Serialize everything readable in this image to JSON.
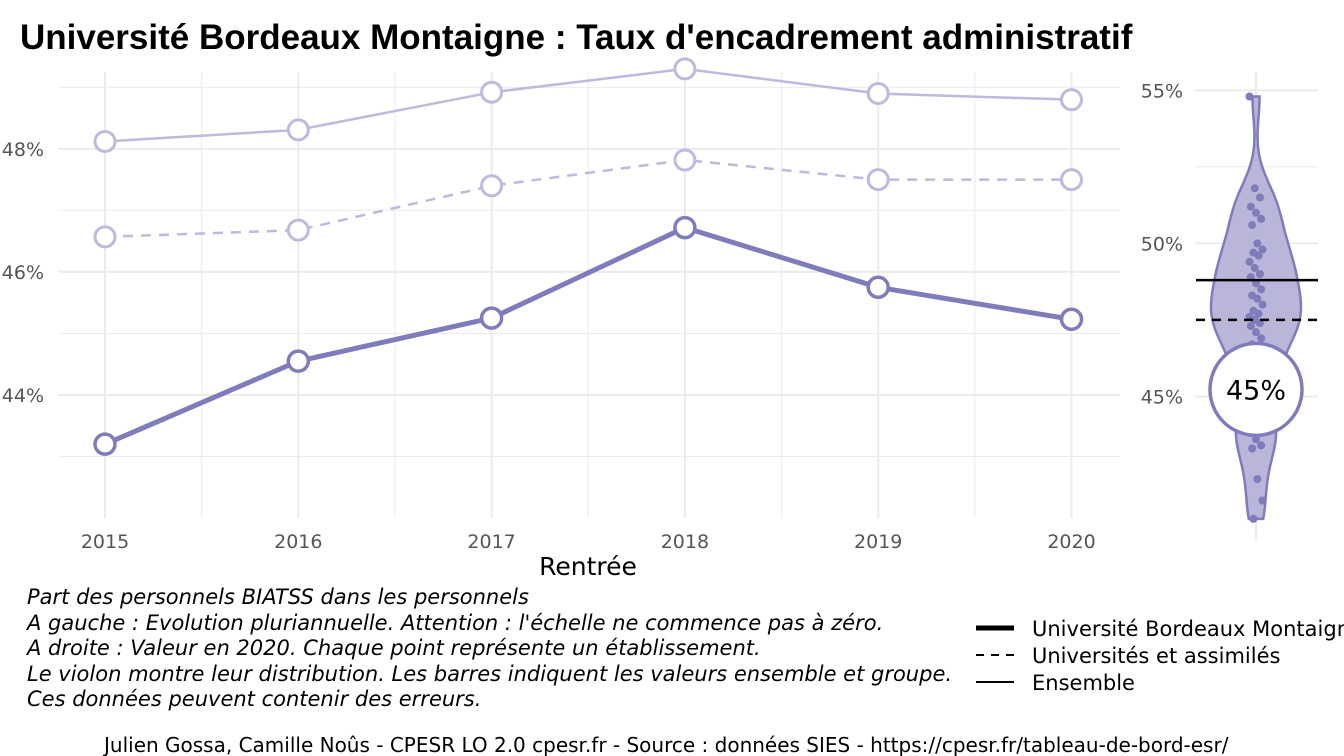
{
  "title": "Université Bordeaux Montaigne  :  Taux d'encadrement administratif",
  "colors": {
    "main": "#7E7CBB",
    "light": "#BDBADD",
    "violin_fill": "#B9B6DA",
    "grid": "#EBEBEB",
    "tick_text": "#555555"
  },
  "caption_lines": [
    "Part des personnels BIATSS dans les personnels",
    "A gauche : Evolution pluriannuelle. Attention : l'échelle ne commence pas à zéro.",
    "A droite : Valeur en 2020. Chaque point représente un établissement.",
    "Le violon montre leur distribution. Les barres indiquent les valeurs ensemble et groupe.",
    "Ces données peuvent contenir des erreurs."
  ],
  "legend": [
    {
      "label": "Université Bordeaux Montaigne",
      "style": "thick"
    },
    {
      "label": "Universités et assimilés",
      "style": "dashed"
    },
    {
      "label": "Ensemble",
      "style": "thin"
    }
  ],
  "credit": "Julien Gossa, Camille Noûs - CPESR LO 2.0 cpesr.fr - Source : données SIES - https://cpesr.fr/tableau-de-bord-esr/",
  "chart_data": [
    {
      "type": "line",
      "xlabel": "Rentrée",
      "ylabel": "",
      "x": [
        2015,
        2016,
        2017,
        2018,
        2019,
        2020
      ],
      "x_tick_labels": [
        "2015",
        "2016",
        "2017",
        "2018",
        "2019",
        "2020"
      ],
      "y_ticks": [
        44,
        46,
        48
      ],
      "y_tick_labels": [
        "44%",
        "46%",
        "48%"
      ],
      "ylim": [
        42.0,
        49.25
      ],
      "grid": true,
      "series": [
        {
          "name": "Université Bordeaux Montaigne",
          "style": "thick",
          "values": [
            43.2,
            44.55,
            45.25,
            46.72,
            45.75,
            45.23
          ]
        },
        {
          "name": "Universités et assimilés",
          "style": "dashed",
          "values": [
            46.57,
            46.68,
            47.4,
            47.82,
            47.5,
            47.5
          ]
        },
        {
          "name": "Ensemble",
          "style": "thin",
          "values": [
            48.12,
            48.31,
            48.92,
            49.3,
            48.9,
            48.8
          ]
        }
      ]
    },
    {
      "type": "violin",
      "y_ticks": [
        45,
        50,
        55
      ],
      "y_tick_labels": [
        "45%",
        "50%",
        "55%"
      ],
      "ylim": [
        40.8,
        55.6
      ],
      "grid": true,
      "highlight_value": 45.23,
      "highlight_label": "45%",
      "reference_lines": [
        {
          "name": "Ensemble",
          "value": 48.8,
          "style": "solid"
        },
        {
          "name": "Universités et assimilés",
          "value": 47.5,
          "style": "dashed"
        }
      ],
      "points": [
        54.8,
        51.8,
        51.5,
        51.2,
        51.0,
        50.8,
        50.6,
        50.0,
        49.8,
        49.7,
        49.6,
        49.4,
        49.2,
        49.0,
        48.9,
        48.7,
        48.5,
        48.3,
        48.2,
        48.0,
        47.8,
        47.7,
        47.6,
        47.5,
        47.4,
        47.3,
        47.1,
        46.9,
        46.7,
        46.4,
        46.1,
        45.8,
        45.5,
        45.1,
        44.7,
        44.2,
        43.8,
        43.6,
        43.4,
        43.3,
        42.3,
        41.6,
        41.0
      ]
    }
  ]
}
